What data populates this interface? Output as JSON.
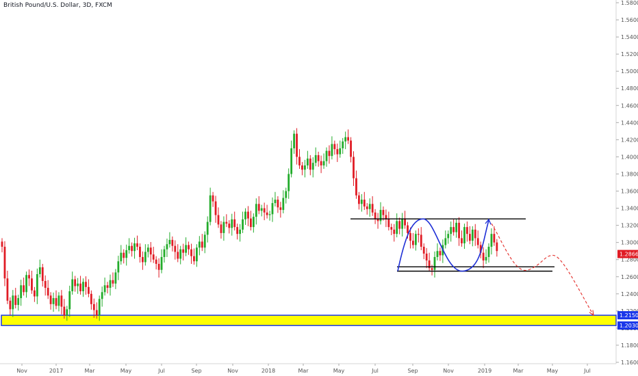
{
  "header": {
    "title": "British Pound/U.S. Dollar, 3D, FXCM"
  },
  "chart_data": {
    "type": "candlestick",
    "ylim": [
      1.16,
      1.58
    ],
    "y_ticks": [
      "1.58000",
      "1.56000",
      "1.54000",
      "1.52000",
      "1.50000",
      "1.48000",
      "1.46000",
      "1.44000",
      "1.42000",
      "1.40000",
      "1.38000",
      "1.36000",
      "1.34000",
      "1.32000",
      "1.30000",
      "1.28000",
      "1.26000",
      "1.24000",
      "1.22000",
      "1.20000",
      "1.18000",
      "1.16000"
    ],
    "x_ticks": [
      "Nov",
      "2017",
      "Mar",
      "May",
      "Jul",
      "Sep",
      "Nov",
      "2018",
      "Mar",
      "May",
      "Jul",
      "Sep",
      "Nov",
      "2019",
      "Mar",
      "May",
      "Jul"
    ],
    "close_series": [
      1.295,
      1.258,
      1.232,
      1.222,
      1.238,
      1.227,
      1.235,
      1.25,
      1.242,
      1.262,
      1.258,
      1.244,
      1.237,
      1.263,
      1.271,
      1.255,
      1.247,
      1.238,
      1.228,
      1.235,
      1.226,
      1.238,
      1.225,
      1.215,
      1.222,
      1.243,
      1.257,
      1.249,
      1.252,
      1.243,
      1.254,
      1.248,
      1.24,
      1.228,
      1.221,
      1.215,
      1.234,
      1.242,
      1.25,
      1.247,
      1.256,
      1.252,
      1.265,
      1.278,
      1.288,
      1.282,
      1.291,
      1.296,
      1.29,
      1.299,
      1.295,
      1.283,
      1.277,
      1.289,
      1.294,
      1.286,
      1.28,
      1.275,
      1.268,
      1.283,
      1.292,
      1.298,
      1.303,
      1.296,
      1.289,
      1.281,
      1.292,
      1.288,
      1.297,
      1.292,
      1.284,
      1.278,
      1.294,
      1.301,
      1.294,
      1.309,
      1.324,
      1.355,
      1.348,
      1.332,
      1.321,
      1.311,
      1.324,
      1.322,
      1.317,
      1.327,
      1.318,
      1.31,
      1.315,
      1.327,
      1.336,
      1.328,
      1.318,
      1.33,
      1.345,
      1.337,
      1.34,
      1.335,
      1.332,
      1.333,
      1.346,
      1.35,
      1.341,
      1.338,
      1.352,
      1.36,
      1.38,
      1.41,
      1.427,
      1.4,
      1.39,
      1.385,
      1.39,
      1.398,
      1.385,
      1.393,
      1.402,
      1.395,
      1.39,
      1.395,
      1.407,
      1.401,
      1.415,
      1.409,
      1.403,
      1.41,
      1.418,
      1.423,
      1.419,
      1.4,
      1.375,
      1.355,
      1.345,
      1.35,
      1.342,
      1.339,
      1.345,
      1.335,
      1.328,
      1.325,
      1.338,
      1.332,
      1.327,
      1.318,
      1.315,
      1.31,
      1.325,
      1.316,
      1.328,
      1.32,
      1.311,
      1.302,
      1.297,
      1.31,
      1.309,
      1.295,
      1.287,
      1.279,
      1.27,
      1.268,
      1.283,
      1.29,
      1.285,
      1.297,
      1.305,
      1.31,
      1.318,
      1.312,
      1.323,
      1.305,
      1.299,
      1.318,
      1.31,
      1.302,
      1.315,
      1.305,
      1.297,
      1.288,
      1.279,
      1.283,
      1.295,
      1.31,
      1.3,
      1.29
    ],
    "price_label": "1.28664",
    "zones": [
      {
        "name": "support-zone",
        "from": 1.203,
        "to": 1.215,
        "color": "#ffff00",
        "border": "#1a36ea"
      }
    ],
    "level_labels": [
      {
        "value": 1.215,
        "label": "1.21500"
      },
      {
        "value": 1.203,
        "label": "1.20300"
      }
    ],
    "colors": {
      "up": "#22ab2a",
      "down": "#e01b24",
      "pattern": "#1e2fd6",
      "projection": "#e53935",
      "line": "#000000",
      "zone_border": "#1a36ea",
      "price_flag": "#e01b24",
      "level_flag": "#1a36ea"
    }
  }
}
